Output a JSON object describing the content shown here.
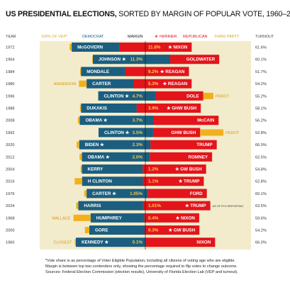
{
  "title": {
    "main": "US PRESIDENTIAL ELECTIONS,",
    "rest": " SORTED BY MARGIN OF POPULAR VOTE, 1960–2024"
  },
  "headers": {
    "year": "YEAR",
    "vep": "100% OF VEP*",
    "democrat": "DEMOCRAT",
    "margin": "MARGIN",
    "winner": "★ =WINNER",
    "republican": "REPUBLICAN",
    "third_party": "THIRD PARTY",
    "turnout": "TURNOUT"
  },
  "colors": {
    "background": "#f2eccc",
    "democrat": "#1b5e80",
    "republican": "#e3141b",
    "third_party": "#f2b01e",
    "margin_dem": "#f2b01e",
    "margin_rep": "#f2b01e"
  },
  "chart_data": {
    "type": "bar",
    "title": "US PRESIDENTIAL ELECTIONS, SORTED BY MARGIN OF POPULAR VOTE, 1960–2024",
    "sort": "margin of popular vote, descending",
    "rows": [
      {
        "year": "1972",
        "dem": "McGOVERN",
        "rep": "NIXON",
        "winner": "rep",
        "margin_label": "11.8%",
        "margin": 11.8,
        "third": "",
        "third_side": "",
        "turnout": "61.6%",
        "annotation": "",
        "dem_share": 0.226,
        "rep_share": 0.342,
        "third_share": 0.01
      },
      {
        "year": "1964",
        "dem": "JOHNSON",
        "rep": "GOLDWATER",
        "winner": "dem",
        "margin_label": "11.3%",
        "margin": 11.3,
        "third": "",
        "third_side": "",
        "turnout": "60.1%",
        "annotation": "",
        "dem_share": 0.366,
        "rep_share": 0.232,
        "third_share": 0.003
      },
      {
        "year": "1984",
        "dem": "MONDALE",
        "rep": "REAGAN",
        "winner": "rep",
        "margin_label": "9.2%",
        "margin": 9.2,
        "third": "",
        "third_side": "",
        "turnout": "51.7%",
        "annotation": "",
        "dem_share": 0.209,
        "rep_share": 0.302,
        "third_share": 0.004
      },
      {
        "year": "1980",
        "dem": "CARTER",
        "rep": "REAGAN",
        "winner": "rep",
        "margin_label": "5.3%",
        "margin": 5.3,
        "third": "ANDERSON",
        "third_side": "left",
        "turnout": "54.2%",
        "annotation": "",
        "dem_share": 0.223,
        "rep_share": 0.274,
        "third_share": 0.036
      },
      {
        "year": "1996",
        "dem": "CLINTON",
        "rep": "DOLE",
        "winner": "dem",
        "margin_label": "4.7%",
        "margin": 4.7,
        "third": "PEROT",
        "third_side": "right",
        "turnout": "55.2%",
        "annotation": "",
        "dem_share": 0.272,
        "rep_share": 0.225,
        "third_share": 0.048
      },
      {
        "year": "1988",
        "dem": "DUKAKIS",
        "rep": "GHW BUSH",
        "winner": "rep",
        "margin_label": "3.9%",
        "margin": 3.9,
        "third": "",
        "third_side": "",
        "turnout": "58.1%",
        "annotation": "",
        "dem_share": 0.264,
        "rep_share": 0.303,
        "third_share": 0.005
      },
      {
        "year": "2008",
        "dem": "OBAMA",
        "rep": "McCAIN",
        "winner": "dem",
        "margin_label": "3.7%",
        "margin": 3.7,
        "third": "",
        "third_side": "",
        "turnout": "56.2%",
        "annotation": "",
        "dem_share": 0.349,
        "rep_share": 0.308,
        "third_share": 0.009
      },
      {
        "year": "1992",
        "dem": "CLINTON",
        "rep": "GHW BUSH",
        "winner": "dem",
        "margin_label": "3.5%",
        "margin": 3.5,
        "third": "PEROT",
        "third_side": "right",
        "turnout": "52.8%",
        "annotation": "",
        "dem_share": 0.258,
        "rep_share": 0.223,
        "third_share": 0.11
      },
      {
        "year": "2020",
        "dem": "BIDEN",
        "rep": "TRUMP",
        "winner": "dem",
        "margin_label": "2.3%",
        "margin": 2.3,
        "third": "",
        "third_side": "",
        "turnout": "66.0%",
        "annotation": "",
        "dem_share": 0.337,
        "rep_share": 0.314,
        "third_share": 0.012
      },
      {
        "year": "2012",
        "dem": "OBAMA",
        "rep": "ROMNEY",
        "winner": "dem",
        "margin_label": "2.0%",
        "margin": 2.0,
        "third": "",
        "third_side": "",
        "turnout": "62.5%",
        "annotation": "",
        "dem_share": 0.321,
        "rep_share": 0.295,
        "third_share": 0.011
      },
      {
        "year": "2004",
        "dem": "KERRY",
        "rep": "GW BUSH",
        "winner": "rep",
        "margin_label": "1.2%",
        "margin": 1.2,
        "third": "",
        "third_side": "",
        "turnout": "54.8%",
        "annotation": "",
        "dem_share": 0.288,
        "rep_share": 0.3,
        "third_share": 0.006
      },
      {
        "year": "2016",
        "dem": "H CLINTON",
        "rep": "TRUMP",
        "winner": "rep",
        "margin_label": "1.1%",
        "margin": 1.1,
        "third": "",
        "third_side": "",
        "turnout": "62.8%",
        "annotation": "",
        "dem_share": 0.288,
        "rep_share": 0.288,
        "third_share": 0.035
      },
      {
        "year": "1976",
        "dem": "CARTER",
        "rep": "FORD",
        "winner": "dem",
        "margin_label": "1.05%",
        "margin": 1.05,
        "third": "",
        "third_side": "",
        "turnout": "60.1%",
        "annotation": "",
        "dem_share": 0.289,
        "rep_share": 0.28,
        "third_share": 0.011
      },
      {
        "year": "2024",
        "dem": "HARRIS",
        "rep": "TRUMP",
        "winner": "rep",
        "margin_label": "1.01%",
        "margin": 1.01,
        "third": "",
        "third_side": "",
        "turnout": "63.5%",
        "annotation": "AS OF 97% REPORTING",
        "dem_share": 0.307,
        "rep_share": 0.318,
        "third_share": 0.01
      },
      {
        "year": "1968",
        "dem": "HUMPHREY",
        "rep": "NIXON",
        "winner": "rep",
        "margin_label": "0.4%",
        "margin": 0.4,
        "third": "WALLACE",
        "third_side": "left",
        "turnout": "59.6%",
        "annotation": "",
        "dem_share": 0.255,
        "rep_share": 0.259,
        "third_share": 0.081
      },
      {
        "year": "2000",
        "dem": "GORE",
        "rep": "GW BUSH",
        "winner": "rep",
        "margin_label": "0.3%",
        "margin": 0.3,
        "third": "",
        "third_side": "",
        "turnout": "54.2%",
        "annotation": "",
        "dem_share": 0.262,
        "rep_share": 0.259,
        "third_share": 0.021
      },
      {
        "year": "1960",
        "dem": "KENNEDY",
        "rep": "NIXON",
        "winner": "dem",
        "margin_label": "0.1%",
        "margin": 0.1,
        "third": "CLOSEST",
        "third_side": "left",
        "turnout": "66.0%",
        "annotation": "",
        "dem_share": 0.33,
        "rep_share": 0.329,
        "third_share": 0.005
      }
    ]
  },
  "footnote": {
    "line1": "*Vote share is as percentage of Voter Eligible Population, including all citizens of voting age who are eligible.",
    "line2": "Margin is between top two contenders only, showing the percentage required to flip votes to change outcome.",
    "line3": "Sources: Federal Election Commission (election results), University of Florida Election Lab (VEP and turnout)."
  }
}
